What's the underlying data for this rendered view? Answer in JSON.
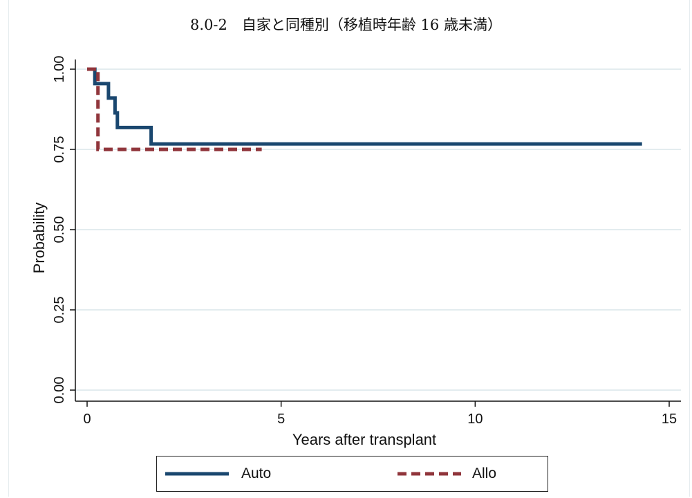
{
  "chart_data": {
    "type": "line",
    "title": "8.0-2　自家と同種別（移植時年齢 16 歳未満）",
    "xlabel": "Years after transplant",
    "ylabel": "Probability",
    "xlim": [
      0,
      15
    ],
    "ylim": [
      0,
      1
    ],
    "x_ticks": [
      "0",
      "5",
      "10",
      "15"
    ],
    "y_ticks": [
      "0.00",
      "0.25",
      "0.50",
      "0.75",
      "1.00"
    ],
    "grid": "horizontal",
    "legend_position": "bottom",
    "series": [
      {
        "name": "Auto",
        "color": "#1a476f",
        "style": "solid",
        "step": true,
        "points": [
          [
            0.0,
            1.0
          ],
          [
            0.2,
            1.0
          ],
          [
            0.2,
            0.955
          ],
          [
            0.55,
            0.955
          ],
          [
            0.55,
            0.91
          ],
          [
            0.72,
            0.91
          ],
          [
            0.72,
            0.864
          ],
          [
            0.78,
            0.864
          ],
          [
            0.78,
            0.818
          ],
          [
            1.65,
            0.818
          ],
          [
            1.65,
            0.767
          ],
          [
            14.3,
            0.767
          ]
        ]
      },
      {
        "name": "Allo",
        "color": "#90353b",
        "style": "dashed",
        "step": true,
        "points": [
          [
            0.0,
            1.0
          ],
          [
            0.28,
            1.0
          ],
          [
            0.28,
            0.75
          ],
          [
            4.5,
            0.75
          ]
        ]
      }
    ]
  }
}
